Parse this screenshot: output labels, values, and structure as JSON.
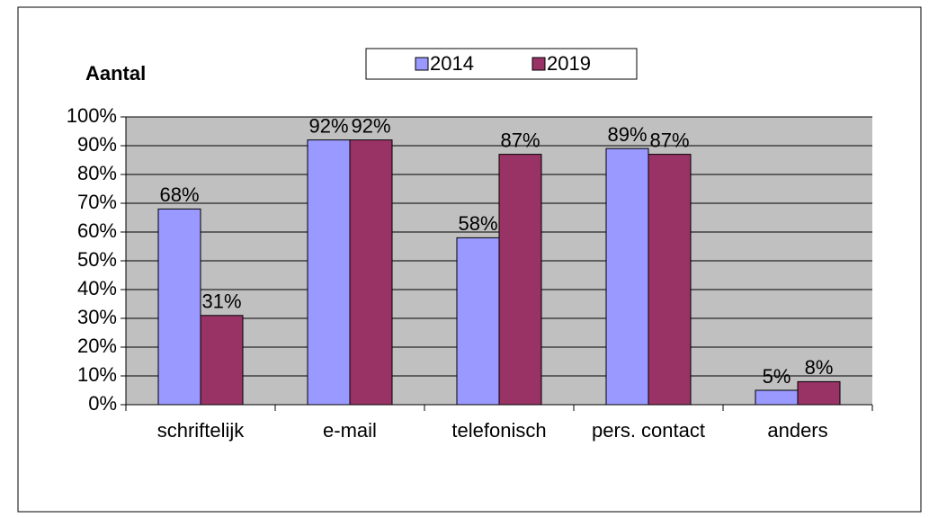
{
  "chart_data": {
    "type": "bar",
    "title": "Aantal",
    "categories": [
      "schriftelijk",
      "e-mail",
      "telefonisch",
      "pers. contact",
      "anders"
    ],
    "series": [
      {
        "name": "2014",
        "color": "#9999ff",
        "values": [
          68,
          92,
          58,
          89,
          5
        ],
        "value_labels": [
          "68%",
          "92%",
          "58%",
          "89%",
          "5%"
        ]
      },
      {
        "name": "2019",
        "color": "#993366",
        "values": [
          31,
          92,
          87,
          87,
          8
        ],
        "value_labels": [
          "31%",
          "92%",
          "87%",
          "87%",
          "8%"
        ]
      }
    ],
    "ylim": [
      0,
      100
    ],
    "yticks": [
      {
        "value": 0,
        "label": "0%"
      },
      {
        "value": 10,
        "label": "10%"
      },
      {
        "value": 20,
        "label": "20%"
      },
      {
        "value": 30,
        "label": "30%"
      },
      {
        "value": 40,
        "label": "40%"
      },
      {
        "value": 50,
        "label": "50%"
      },
      {
        "value": 60,
        "label": "60%"
      },
      {
        "value": 70,
        "label": "70%"
      },
      {
        "value": 80,
        "label": "80%"
      },
      {
        "value": 90,
        "label": "90%"
      },
      {
        "value": 100,
        "label": "100%"
      }
    ],
    "grid": true,
    "legend": "top"
  }
}
